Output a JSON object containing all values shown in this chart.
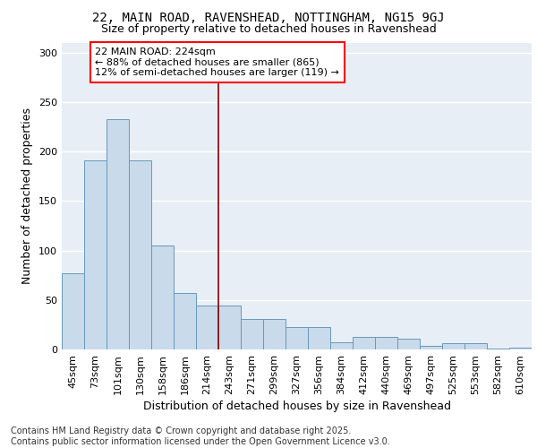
{
  "title1": "22, MAIN ROAD, RAVENSHEAD, NOTTINGHAM, NG15 9GJ",
  "title2": "Size of property relative to detached houses in Ravenshead",
  "xlabel": "Distribution of detached houses by size in Ravenshead",
  "ylabel": "Number of detached properties",
  "categories": [
    "45sqm",
    "73sqm",
    "101sqm",
    "130sqm",
    "158sqm",
    "186sqm",
    "214sqm",
    "243sqm",
    "271sqm",
    "299sqm",
    "327sqm",
    "356sqm",
    "384sqm",
    "412sqm",
    "440sqm",
    "469sqm",
    "497sqm",
    "525sqm",
    "553sqm",
    "582sqm",
    "610sqm"
  ],
  "values": [
    77,
    191,
    233,
    191,
    105,
    57,
    44,
    44,
    31,
    31,
    23,
    23,
    7,
    13,
    13,
    11,
    4,
    6,
    6,
    1,
    2
  ],
  "bar_color": "#c9daea",
  "bar_edge_color": "#6699bb",
  "background_color": "#e8eef5",
  "grid_color": "#ffffff",
  "annotation_box_text": "22 MAIN ROAD: 224sqm\n← 88% of detached houses are smaller (865)\n12% of semi-detached houses are larger (119) →",
  "vline_color": "#8b0000",
  "vline_x_index": 6.5,
  "ylim": [
    0,
    310
  ],
  "yticks": [
    0,
    50,
    100,
    150,
    200,
    250,
    300
  ],
  "footer_text": "Contains HM Land Registry data © Crown copyright and database right 2025.\nContains public sector information licensed under the Open Government Licence v3.0.",
  "title1_fontsize": 10,
  "title2_fontsize": 9,
  "axis_label_fontsize": 9,
  "tick_fontsize": 8,
  "annotation_fontsize": 8,
  "footer_fontsize": 7
}
